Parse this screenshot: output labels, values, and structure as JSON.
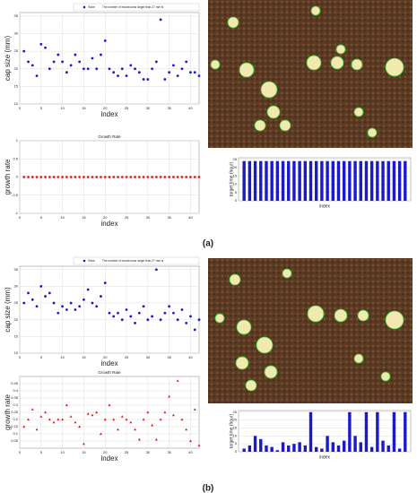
{
  "chart_data": [
    {
      "type": "scatter",
      "panel": "(a)",
      "xlabel": "index",
      "ylabel": "cap size (mm)",
      "annotation": "The number of mushrooms larger than 27 mm is",
      "x": [
        1,
        2,
        3,
        4,
        5,
        6,
        7,
        8,
        9,
        10,
        11,
        12,
        13,
        14,
        15,
        16,
        17,
        18,
        19,
        20,
        21,
        22,
        23,
        24,
        25,
        26,
        27,
        28,
        29,
        30,
        31,
        32,
        33,
        34,
        35,
        36,
        37,
        38,
        39,
        40,
        41,
        42
      ],
      "series": [
        {
          "name": "Size",
          "color": "#1a1acc",
          "marker": "circle",
          "values": [
            25,
            22,
            21,
            18,
            27,
            26,
            20,
            22,
            24,
            22,
            19,
            21,
            24,
            22,
            20,
            20,
            23,
            20,
            24,
            28,
            20,
            19,
            18,
            20,
            18,
            21,
            20,
            19,
            17,
            17,
            20,
            22,
            34,
            17,
            19,
            21,
            18,
            20,
            22,
            19,
            19,
            18
          ]
        }
      ],
      "xlim": [
        0,
        42
      ],
      "xticks": [
        0,
        5,
        10,
        15,
        20,
        25,
        30,
        35,
        40
      ],
      "ylim": [
        10,
        36
      ],
      "yticks": [
        10,
        15,
        20,
        25,
        30,
        35
      ],
      "grid": true
    },
    {
      "type": "scatter",
      "title": "Growth Rate",
      "xlabel": "index",
      "ylabel": "growth rate",
      "x": [
        1,
        2,
        3,
        4,
        5,
        6,
        7,
        8,
        9,
        10,
        11,
        12,
        13,
        14,
        15,
        16,
        17,
        18,
        19,
        20,
        21,
        22,
        23,
        24,
        25,
        26,
        27,
        28,
        29,
        30,
        31,
        32,
        33,
        34,
        35,
        36,
        37,
        38,
        39,
        40,
        41,
        42
      ],
      "series": [
        {
          "color": "#e02020",
          "marker": "circle",
          "values": [
            0,
            0,
            0,
            0,
            0,
            0,
            0,
            0,
            0,
            0,
            0,
            0,
            0,
            0,
            0,
            0,
            0,
            0,
            0,
            0,
            0,
            0,
            0,
            0,
            0,
            0,
            0,
            0,
            0,
            0,
            0,
            0,
            0,
            0,
            0,
            0,
            0,
            0,
            0,
            0,
            0,
            0
          ]
        }
      ],
      "xlim": [
        0,
        42
      ],
      "xticks": [
        0,
        5,
        10,
        15,
        20,
        25,
        30,
        35,
        40
      ],
      "ylim": [
        -1,
        1
      ],
      "yticks": [
        -1,
        -0.5,
        0,
        0.5,
        1
      ],
      "grid": true
    },
    {
      "type": "bar",
      "xlabel": "index",
      "ylabel": "target time (hour)",
      "x": [
        1,
        2,
        3,
        4,
        5,
        6,
        7,
        8,
        9,
        10,
        11,
        12,
        13,
        14,
        15,
        16,
        17,
        18,
        19,
        20,
        21,
        22,
        23,
        24,
        25,
        26,
        27,
        28,
        29,
        30
      ],
      "values": [
        24,
        24,
        24,
        24,
        24,
        24,
        24,
        24,
        24,
        24,
        24,
        24,
        24,
        24,
        24,
        24,
        24,
        24,
        24,
        24,
        24,
        24,
        24,
        24,
        24,
        24,
        24,
        24,
        24,
        24
      ],
      "color": "#1a1acc",
      "xlim": [
        0,
        31
      ],
      "ylim": [
        0,
        26
      ],
      "yticks": [
        0,
        5,
        10,
        15,
        20,
        25
      ],
      "grid": true
    },
    {
      "type": "scatter",
      "panel": "(b)",
      "xlabel": "index",
      "ylabel": "cap size (mm)",
      "annotation": "The number of mushrooms larger than 27 mm is",
      "x": [
        1,
        2,
        3,
        4,
        5,
        6,
        7,
        8,
        9,
        10,
        11,
        12,
        13,
        14,
        15,
        16,
        17,
        18,
        19,
        20,
        21,
        22,
        23,
        24,
        25,
        26,
        27,
        28,
        29,
        30,
        31,
        32,
        33,
        34,
        35,
        36,
        37,
        38,
        39,
        40,
        41,
        42
      ],
      "series": [
        {
          "name": "Size",
          "color": "#1a1acc",
          "marker": "circle",
          "values": [
            25,
            28,
            26,
            24,
            30,
            27,
            28,
            25,
            22,
            24,
            23,
            25,
            23,
            24,
            26,
            29,
            25,
            24,
            27,
            31,
            22,
            21,
            22,
            20,
            23,
            21,
            19,
            22,
            24,
            20,
            21,
            35,
            20,
            22,
            24,
            22,
            20,
            23,
            19,
            21,
            17,
            20
          ]
        }
      ],
      "xlim": [
        0,
        42
      ],
      "xticks": [
        0,
        5,
        10,
        15,
        20,
        25,
        30,
        35,
        40
      ],
      "ylim": [
        10,
        36
      ],
      "yticks": [
        10,
        15,
        20,
        25,
        30,
        35
      ],
      "grid": true
    },
    {
      "type": "scatter",
      "title": "Growth Rate",
      "xlabel": "index",
      "ylabel": "growth rate",
      "x": [
        1,
        2,
        3,
        4,
        5,
        6,
        7,
        8,
        9,
        10,
        11,
        12,
        13,
        14,
        15,
        16,
        17,
        18,
        19,
        20,
        21,
        22,
        23,
        24,
        25,
        26,
        27,
        28,
        29,
        30,
        31,
        32,
        33,
        34,
        35,
        36,
        37,
        38,
        39,
        40,
        41,
        42
      ],
      "series": [
        {
          "color": "#e02020",
          "marker": "triangle",
          "values": [
            0.15,
            0.2,
            0.27,
            0.13,
            0.22,
            0.25,
            0.2,
            0.18,
            0.2,
            0.2,
            0.3,
            0.22,
            0.18,
            0.15,
            0.03,
            0.24,
            0.23,
            0.25,
            0.1,
            0.2,
            0.3,
            0.2,
            0.13,
            0.22,
            0.2,
            0.18,
            0.13,
            0.06,
            0.2,
            0.25,
            0.16,
            0.06,
            0.2,
            0.25,
            0.36,
            0.23,
            0.47,
            0.2,
            0.13,
            0.05,
            0.27,
            0.02
          ]
        }
      ],
      "xlim": [
        0,
        42
      ],
      "xticks": [
        0,
        5,
        10,
        15,
        20,
        25,
        30,
        35,
        40
      ],
      "ylim": [
        0,
        0.5
      ],
      "yticks": [
        0.05,
        0.1,
        0.15,
        0.2,
        0.25,
        0.3,
        0.35,
        0.4,
        0.45
      ],
      "grid": true
    },
    {
      "type": "bar",
      "xlabel": "index",
      "ylabel": "target time (hour)",
      "x": [
        1,
        2,
        3,
        4,
        5,
        6,
        7,
        8,
        9,
        10,
        11,
        12,
        13,
        14,
        15,
        16,
        17,
        18,
        19,
        20,
        21,
        22,
        23,
        24,
        25,
        26,
        27,
        28,
        29,
        30
      ],
      "values": [
        2,
        4,
        10,
        8,
        4,
        3,
        1,
        6,
        4,
        5,
        6,
        4,
        25,
        3,
        2,
        10,
        6,
        4,
        7,
        25,
        10,
        6,
        25,
        3,
        25,
        7,
        4,
        25,
        2,
        25
      ],
      "color": "#1a1acc",
      "xlim": [
        0,
        31
      ],
      "ylim": [
        0,
        26
      ],
      "yticks": [
        0,
        5,
        10,
        15,
        20,
        25
      ],
      "grid": true
    }
  ]
}
